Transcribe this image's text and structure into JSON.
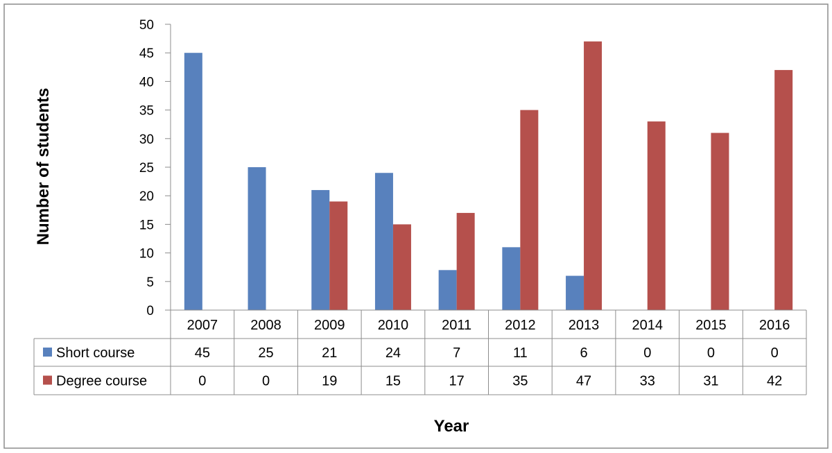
{
  "chart_data": {
    "type": "bar",
    "title": "",
    "xlabel": "Year",
    "ylabel": "Number of students",
    "ylim": [
      0,
      50
    ],
    "yticks": [
      0,
      5,
      10,
      15,
      20,
      25,
      30,
      35,
      40,
      45,
      50
    ],
    "grid": false,
    "legend": "data table rows below the x-axis",
    "categories": [
      "2007",
      "2008",
      "2009",
      "2010",
      "2011",
      "2012",
      "2013",
      "2014",
      "2015",
      "2016"
    ],
    "series": [
      {
        "name": "Short course",
        "color": "#5881bd",
        "values": [
          45,
          25,
          21,
          24,
          7,
          11,
          6,
          0,
          0,
          0
        ]
      },
      {
        "name": "Degree course",
        "color": "#b5504c",
        "values": [
          0,
          0,
          19,
          15,
          17,
          35,
          47,
          33,
          31,
          42
        ]
      }
    ]
  }
}
